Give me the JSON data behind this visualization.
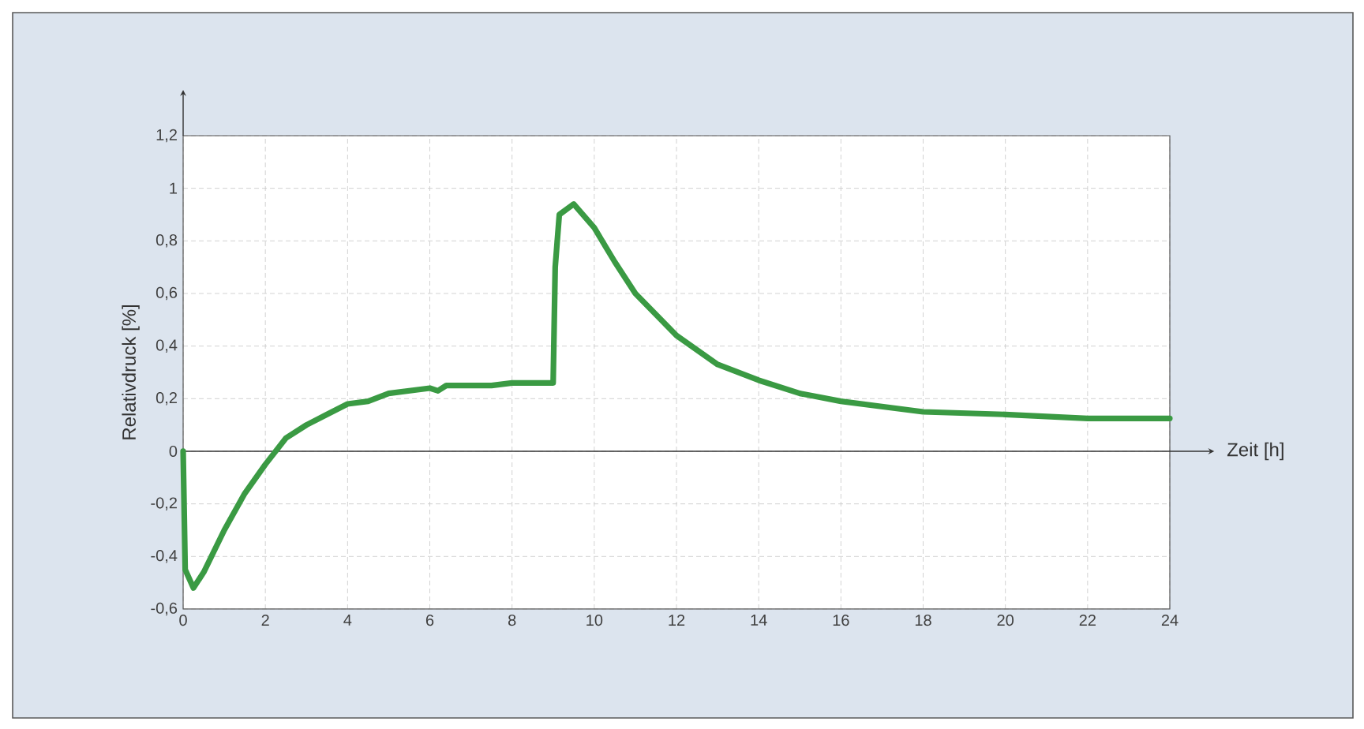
{
  "chart_data": {
    "type": "line",
    "xlabel": "Zeit [h]",
    "ylabel": "Relativdruck [%]",
    "xlim": [
      0,
      24
    ],
    "ylim": [
      -0.6,
      1.2
    ],
    "xticks": [
      0,
      2,
      4,
      6,
      8,
      10,
      12,
      14,
      16,
      18,
      20,
      22,
      24
    ],
    "yticks": [
      {
        "value": -0.6,
        "label": "-0,6"
      },
      {
        "value": -0.4,
        "label": "-0,4"
      },
      {
        "value": -0.2,
        "label": "-0,2"
      },
      0,
      {
        "value": 0.2,
        "label": "0,2"
      },
      {
        "value": 0.4,
        "label": "0,4"
      },
      {
        "value": 0.6,
        "label": "0,6"
      },
      {
        "value": 0.8,
        "label": "0,8"
      },
      1,
      {
        "value": 1.2,
        "label": "1,2"
      }
    ],
    "grid": true,
    "marker": "none",
    "line_style": "solid",
    "series": [
      {
        "color": "#3a9a43",
        "x": [
          0,
          0.05,
          0.25,
          0.5,
          1,
          1.5,
          2,
          2.5,
          3,
          3.5,
          4,
          4.5,
          5,
          6,
          6.2,
          6.4,
          7,
          7.5,
          8,
          9,
          9.05,
          9.15,
          9.5,
          10,
          10.5,
          11,
          12,
          13,
          14,
          15,
          16,
          18,
          20,
          22,
          24
        ],
        "values": [
          0,
          -0.45,
          -0.52,
          -0.46,
          -0.3,
          -0.16,
          -0.05,
          0.05,
          0.1,
          0.14,
          0.18,
          0.19,
          0.22,
          0.24,
          0.23,
          0.25,
          0.25,
          0.25,
          0.26,
          0.26,
          0.7,
          0.9,
          0.94,
          0.85,
          0.72,
          0.6,
          0.44,
          0.33,
          0.27,
          0.22,
          0.19,
          0.15,
          0.14,
          0.125,
          0.125
        ]
      }
    ]
  }
}
